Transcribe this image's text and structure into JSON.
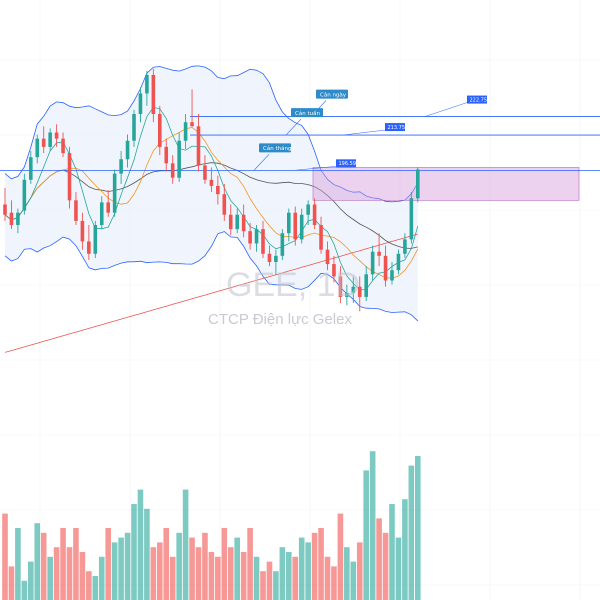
{
  "chart_data": {
    "type": "candlestick",
    "watermark": {
      "ticker": "GEE, 1D",
      "company": "CTCP Điện lực Gelex"
    },
    "colors": {
      "up": "#26a69a",
      "down": "#ef5350",
      "bollinger": "#2962ff",
      "bollinger_fill": "#e6eefc",
      "ma_short": "#26a69a",
      "ma_mid": "#f7931a",
      "ma_long": "#555555",
      "ma_200": "#ef5350",
      "zone": "#d59bd9"
    },
    "resistance": [
      {
        "label": "Cản ngày",
        "price": 222.75,
        "price_label": "222.75"
      },
      {
        "label": "Cản tuần",
        "price": 213.75,
        "price_label": "213.75"
      },
      {
        "label": "Cản tháng",
        "price": 196.59,
        "price_label": "196.59"
      }
    ],
    "zone": {
      "top": 198,
      "bottom": 182
    },
    "y_range": [
      80,
      260
    ],
    "candles": [
      {
        "o": 180,
        "h": 188,
        "l": 172,
        "c": 175
      },
      {
        "o": 176,
        "h": 182,
        "l": 168,
        "c": 170
      },
      {
        "o": 170,
        "h": 178,
        "l": 166,
        "c": 176
      },
      {
        "o": 177,
        "h": 195,
        "l": 175,
        "c": 192
      },
      {
        "o": 192,
        "h": 206,
        "l": 190,
        "c": 203
      },
      {
        "o": 203,
        "h": 214,
        "l": 200,
        "c": 212
      },
      {
        "o": 212,
        "h": 218,
        "l": 205,
        "c": 208
      },
      {
        "o": 208,
        "h": 217,
        "l": 206,
        "c": 215
      },
      {
        "o": 215,
        "h": 219,
        "l": 208,
        "c": 212
      },
      {
        "o": 212,
        "h": 215,
        "l": 203,
        "c": 205
      },
      {
        "o": 205,
        "h": 208,
        "l": 178,
        "c": 182
      },
      {
        "o": 182,
        "h": 186,
        "l": 170,
        "c": 172
      },
      {
        "o": 172,
        "h": 176,
        "l": 158,
        "c": 162
      },
      {
        "o": 162,
        "h": 170,
        "l": 153,
        "c": 156
      },
      {
        "o": 156,
        "h": 172,
        "l": 154,
        "c": 170
      },
      {
        "o": 170,
        "h": 184,
        "l": 168,
        "c": 181
      },
      {
        "o": 181,
        "h": 187,
        "l": 174,
        "c": 176
      },
      {
        "o": 176,
        "h": 197,
        "l": 174,
        "c": 195
      },
      {
        "o": 195,
        "h": 206,
        "l": 190,
        "c": 202
      },
      {
        "o": 202,
        "h": 214,
        "l": 198,
        "c": 211
      },
      {
        "o": 211,
        "h": 226,
        "l": 208,
        "c": 224
      },
      {
        "o": 224,
        "h": 237,
        "l": 220,
        "c": 234
      },
      {
        "o": 234,
        "h": 245,
        "l": 228,
        "c": 243
      },
      {
        "o": 243,
        "h": 246,
        "l": 220,
        "c": 224
      },
      {
        "o": 224,
        "h": 228,
        "l": 204,
        "c": 208
      },
      {
        "o": 208,
        "h": 212,
        "l": 196,
        "c": 200
      },
      {
        "o": 200,
        "h": 204,
        "l": 190,
        "c": 193
      },
      {
        "o": 193,
        "h": 215,
        "l": 191,
        "c": 211
      },
      {
        "o": 211,
        "h": 224,
        "l": 207,
        "c": 220
      },
      {
        "o": 220,
        "h": 236,
        "l": 218,
        "c": 218
      },
      {
        "o": 218,
        "h": 224,
        "l": 196,
        "c": 199
      },
      {
        "o": 199,
        "h": 204,
        "l": 190,
        "c": 192
      },
      {
        "o": 192,
        "h": 198,
        "l": 186,
        "c": 189
      },
      {
        "o": 189,
        "h": 194,
        "l": 180,
        "c": 185
      },
      {
        "o": 185,
        "h": 190,
        "l": 172,
        "c": 175
      },
      {
        "o": 175,
        "h": 180,
        "l": 165,
        "c": 168
      },
      {
        "o": 168,
        "h": 178,
        "l": 166,
        "c": 175
      },
      {
        "o": 175,
        "h": 180,
        "l": 164,
        "c": 167
      },
      {
        "o": 167,
        "h": 171,
        "l": 158,
        "c": 161
      },
      {
        "o": 161,
        "h": 170,
        "l": 157,
        "c": 168
      },
      {
        "o": 168,
        "h": 172,
        "l": 154,
        "c": 156
      },
      {
        "o": 156,
        "h": 160,
        "l": 150,
        "c": 152
      },
      {
        "o": 152,
        "h": 158,
        "l": 146,
        "c": 155
      },
      {
        "o": 155,
        "h": 168,
        "l": 153,
        "c": 166
      },
      {
        "o": 166,
        "h": 178,
        "l": 162,
        "c": 176
      },
      {
        "o": 176,
        "h": 179,
        "l": 160,
        "c": 163
      },
      {
        "o": 163,
        "h": 178,
        "l": 161,
        "c": 175
      },
      {
        "o": 175,
        "h": 182,
        "l": 170,
        "c": 180
      },
      {
        "o": 180,
        "h": 183,
        "l": 168,
        "c": 170
      },
      {
        "o": 170,
        "h": 174,
        "l": 156,
        "c": 158
      },
      {
        "o": 158,
        "h": 162,
        "l": 148,
        "c": 151
      },
      {
        "o": 151,
        "h": 155,
        "l": 142,
        "c": 145
      },
      {
        "o": 145,
        "h": 150,
        "l": 132,
        "c": 135
      },
      {
        "o": 135,
        "h": 141,
        "l": 131,
        "c": 137
      },
      {
        "o": 137,
        "h": 145,
        "l": 132,
        "c": 140
      },
      {
        "o": 140,
        "h": 145,
        "l": 128,
        "c": 135
      },
      {
        "o": 135,
        "h": 150,
        "l": 133,
        "c": 146
      },
      {
        "o": 146,
        "h": 160,
        "l": 143,
        "c": 157
      },
      {
        "o": 157,
        "h": 166,
        "l": 150,
        "c": 155
      },
      {
        "o": 155,
        "h": 160,
        "l": 140,
        "c": 143
      },
      {
        "o": 143,
        "h": 152,
        "l": 141,
        "c": 148
      },
      {
        "o": 148,
        "h": 158,
        "l": 146,
        "c": 156
      },
      {
        "o": 156,
        "h": 166,
        "l": 154,
        "c": 163
      },
      {
        "o": 163,
        "h": 186,
        "l": 161,
        "c": 183
      },
      {
        "o": 183,
        "h": 198,
        "l": 181,
        "c": 197
      }
    ],
    "volumes": [
      36,
      14,
      30,
      8,
      16,
      32,
      28,
      18,
      22,
      30,
      22,
      30,
      20,
      12,
      10,
      18,
      30,
      24,
      26,
      28,
      40,
      46,
      38,
      22,
      24,
      30,
      18,
      28,
      46,
      26,
      22,
      28,
      20,
      18,
      30,
      22,
      26,
      20,
      30,
      18,
      12,
      16,
      12,
      22,
      20,
      18,
      26,
      24,
      28,
      30,
      18,
      14,
      36,
      22,
      16,
      24,
      54,
      62,
      34,
      28,
      40,
      26,
      42,
      56,
      60
    ],
    "volume_up": [
      false,
      false,
      true,
      true,
      true,
      true,
      false,
      true,
      false,
      false,
      false,
      false,
      false,
      false,
      true,
      true,
      false,
      true,
      true,
      true,
      true,
      true,
      true,
      false,
      false,
      false,
      false,
      true,
      true,
      false,
      false,
      false,
      false,
      false,
      false,
      false,
      true,
      false,
      false,
      true,
      false,
      false,
      true,
      true,
      true,
      false,
      true,
      true,
      false,
      false,
      false,
      false,
      false,
      true,
      true,
      false,
      true,
      true,
      false,
      false,
      true,
      true,
      true,
      true,
      true
    ]
  }
}
